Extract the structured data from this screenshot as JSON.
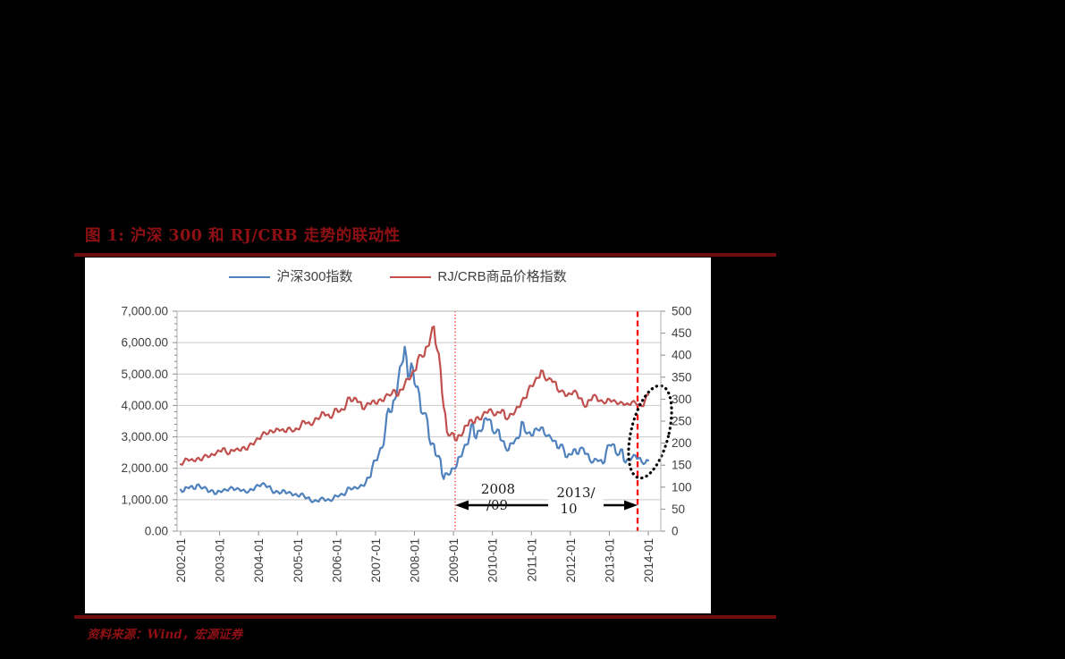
{
  "figure": {
    "title": "图 1:  沪深 300 和 RJ/CRB 走势的联动性",
    "source": "资料来源：Wind，宏源证券"
  },
  "colors": {
    "hs300_blue": "#4F81BD",
    "crb_red": "#C0504D",
    "dark_red_accent": "#8e1014",
    "rule_red": "#6e0c10",
    "event_line_red": "#FF0000",
    "grid_gray": "#c9c9c9",
    "axis_gray": "#8c8c8c",
    "label_gray": "#3f3f3f"
  },
  "chart_data": {
    "type": "line",
    "title": "沪深300和RJ/CRB走势的联动性",
    "x_tick_labels": [
      "2002-01",
      "2003-01",
      "2004-01",
      "2005-01",
      "2006-01",
      "2007-01",
      "2008-01",
      "2009-01",
      "2010-01",
      "2011-01",
      "2012-01",
      "2013-01",
      "2014-01"
    ],
    "x_range": [
      "2002-01",
      "2014-01"
    ],
    "x_frequency": "monthly",
    "left_axis": {
      "min": 0,
      "max": 7000,
      "step": 1000,
      "tick_labels": [
        "0.00",
        "1,000.00",
        "2,000.00",
        "3,000.00",
        "4,000.00",
        "5,000.00",
        "6,000.00",
        "7,000.00"
      ]
    },
    "right_axis": {
      "min": 0,
      "max": 500,
      "step": 50,
      "tick_labels": [
        "0",
        "50",
        "100",
        "150",
        "200",
        "250",
        "300",
        "350",
        "400",
        "450",
        "500"
      ]
    },
    "grid": "horizontal",
    "legend_position": "top-center",
    "series": [
      {
        "name": "沪深300指数",
        "axis": "left",
        "color": "#4F81BD",
        "values": [
          1320,
          1270,
          1390,
          1420,
          1350,
          1470,
          1410,
          1380,
          1350,
          1260,
          1280,
          1190,
          1270,
          1290,
          1310,
          1350,
          1380,
          1330,
          1340,
          1300,
          1250,
          1270,
          1320,
          1400,
          1450,
          1500,
          1480,
          1420,
          1310,
          1230,
          1250,
          1220,
          1290,
          1220,
          1210,
          1160,
          1120,
          1180,
          1120,
          1060,
          970,
          950,
          960,
          1030,
          1040,
          990,
          980,
          1040,
          1120,
          1150,
          1160,
          1240,
          1380,
          1350,
          1380,
          1400,
          1450,
          1550,
          1700,
          2040,
          2250,
          2450,
          2650,
          3200,
          3900,
          3800,
          4200,
          4800,
          5300,
          5870,
          4900,
          5340,
          4700,
          4600,
          3790,
          3760,
          3530,
          2750,
          2770,
          2380,
          2290,
          1660,
          1840,
          1820,
          2000,
          2080,
          2370,
          2580,
          2750,
          3060,
          3430,
          2950,
          3200,
          3250,
          3600,
          3560,
          3200,
          3130,
          3220,
          2870,
          2660,
          2580,
          2800,
          2900,
          2950,
          3480,
          3180,
          3130,
          3040,
          3240,
          3220,
          3300,
          3100,
          3040,
          2980,
          2880,
          2650,
          2750,
          2600,
          2350,
          2440,
          2600,
          2460,
          2630,
          2630,
          2460,
          2260,
          2200,
          2290,
          2250,
          2150,
          2520,
          2740,
          2770,
          2490,
          2440,
          2600,
          2180,
          2270,
          2340,
          2410,
          2320,
          2200,
          2160,
          2250
        ]
      },
      {
        "name": "RJ/CRB商品价格指数",
        "axis": "right",
        "color": "#C0504D",
        "values": [
          152,
          158,
          164,
          162,
          160,
          165,
          162,
          168,
          172,
          170,
          174,
          178,
          182,
          188,
          180,
          176,
          184,
          186,
          184,
          190,
          186,
          194,
          198,
          204,
          210,
          218,
          224,
          222,
          228,
          226,
          232,
          230,
          226,
          234,
          230,
          228,
          232,
          240,
          250,
          246,
          242,
          248,
          256,
          260,
          270,
          264,
          258,
          266,
          278,
          272,
          276,
          288,
          304,
          296,
          302,
          294,
          278,
          284,
          290,
          296,
          290,
          298,
          296,
          306,
          310,
          312,
          320,
          308,
          322,
          334,
          346,
          352,
          364,
          390,
          400,
          398,
          420,
          444,
          465,
          412,
          370,
          282,
          226,
          218,
          222,
          206,
          218,
          224,
          240,
          252,
          246,
          258,
          254,
          264,
          270,
          276,
          270,
          264,
          270,
          276,
          256,
          258,
          266,
          272,
          282,
          296,
          302,
          320,
          330,
          340,
          348,
          365,
          350,
          344,
          346,
          340,
          322,
          318,
          316,
          308,
          312,
          318,
          314,
          302,
          288,
          284,
          298,
          308,
          306,
          296,
          294,
          292,
          300,
          296,
          294,
          290,
          292,
          288,
          288,
          294,
          292,
          288,
          284,
          298,
          310
        ]
      }
    ],
    "annotations": {
      "dotted_vline_at": "2009-01",
      "dashed_vline_at": "2013-10",
      "arrow": {
        "from": "2009-01",
        "to": "2013-10",
        "style": "double-headed"
      },
      "left_label_line1": "2008",
      "left_label_line2": "/09",
      "right_label_line1": "2013/",
      "right_label_line2": "10",
      "highlight_ellipse_around": "2013-09 to 2014-01"
    }
  }
}
